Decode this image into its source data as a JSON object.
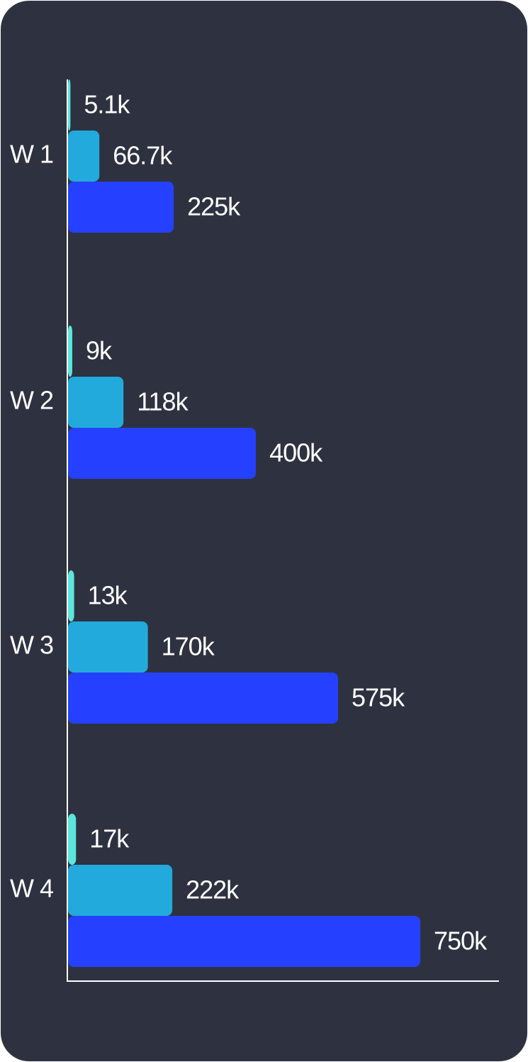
{
  "chart_data": {
    "type": "bar",
    "orientation": "horizontal",
    "categories": [
      "W 1",
      "W 2",
      "W 3",
      "W 4"
    ],
    "series": [
      {
        "color": "#5ce6dc",
        "values": [
          5.1,
          9,
          13,
          17
        ],
        "value_labels": [
          "5.1k",
          "9k",
          "13k",
          "17k"
        ]
      },
      {
        "color": "#22aadc",
        "values": [
          66.7,
          118,
          170,
          222
        ],
        "value_labels": [
          "66.7k",
          "118k",
          "170k",
          "222k"
        ]
      },
      {
        "color": "#2541ff",
        "values": [
          225,
          400,
          575,
          750
        ],
        "value_labels": [
          "225k",
          "400k",
          "575k",
          "750k"
        ]
      }
    ]
  }
}
